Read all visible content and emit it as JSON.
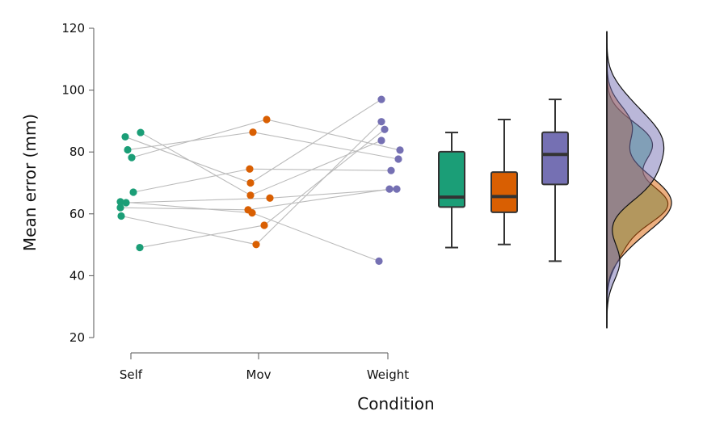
{
  "chart_data": {
    "type": "raincloud",
    "xlabel": "Condition",
    "ylabel": "Mean error (mm)",
    "ylim": [
      20,
      120
    ],
    "yticks": [
      20,
      40,
      60,
      80,
      100,
      120
    ],
    "categories": [
      "Self",
      "Mov",
      "Weight"
    ],
    "colors": {
      "Self": "#1b9e77",
      "Mov": "#d95f02",
      "Weight": "#7570b3",
      "pair_line": "#bbbbbb",
      "axis": "#555555",
      "box_edge": "#333333"
    },
    "subjects": [
      {
        "Self": 86.3,
        "Mov": 66.0,
        "Weight": 83.7
      },
      {
        "Self": 84.9,
        "Mov": 70.0,
        "Weight": 97.0
      },
      {
        "Self": 80.7,
        "Mov": 86.4,
        "Weight": 77.7
      },
      {
        "Self": 78.2,
        "Mov": 90.5,
        "Weight": 80.6
      },
      {
        "Self": 67.0,
        "Mov": 74.5,
        "Weight": 74.0
      },
      {
        "Self": 63.9,
        "Mov": 60.3,
        "Weight": 44.7
      },
      {
        "Self": 63.6,
        "Mov": 65.1,
        "Weight": 68.0
      },
      {
        "Self": 62.0,
        "Mov": 61.3,
        "Weight": 68.0
      },
      {
        "Self": 59.3,
        "Mov": 50.1,
        "Weight": 89.8
      },
      {
        "Self": 49.1,
        "Mov": 56.3,
        "Weight": 87.3
      }
    ],
    "boxes": [
      {
        "category": "Self",
        "min": 49.1,
        "q1": 62.2,
        "median": 65.4,
        "q3": 80.1,
        "max": 86.3
      },
      {
        "category": "Mov",
        "min": 50.1,
        "q1": 60.5,
        "median": 65.6,
        "q3": 73.5,
        "max": 90.5
      },
      {
        "category": "Weight",
        "min": 44.7,
        "q1": 69.5,
        "median": 79.2,
        "q3": 86.4,
        "max": 97.0
      }
    ],
    "density_range": [
      23,
      119
    ],
    "bandwidth": 6
  }
}
